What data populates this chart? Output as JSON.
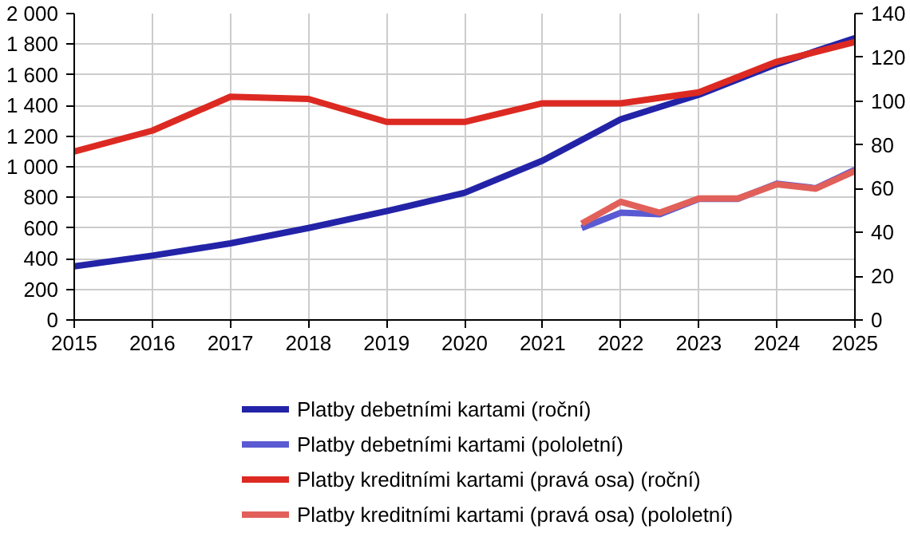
{
  "chart_data": {
    "type": "line",
    "xlim": [
      2015,
      2025
    ],
    "xticks": [
      2015,
      2016,
      2017,
      2018,
      2019,
      2020,
      2021,
      2022,
      2023,
      2024,
      2025
    ],
    "ylim": [
      0,
      2000
    ],
    "yticks": [
      {
        "value": 0,
        "label": "0"
      },
      {
        "value": 200,
        "label": "200"
      },
      {
        "value": 400,
        "label": "400"
      },
      {
        "value": 600,
        "label": "600"
      },
      {
        "value": 800,
        "label": "800"
      },
      {
        "value": 1000,
        "label": "1 000"
      },
      {
        "value": 1200,
        "label": "1 200"
      },
      {
        "value": 1400,
        "label": "1 400"
      },
      {
        "value": 1600,
        "label": "1 600"
      },
      {
        "value": 1800,
        "label": "1 800"
      },
      {
        "value": 2000,
        "label": "2 000"
      }
    ],
    "y2lim": [
      0,
      140
    ],
    "y2ticks": [
      0,
      20,
      40,
      60,
      80,
      100,
      120,
      140
    ],
    "grid": true,
    "legend": "bottom",
    "marker": "none",
    "line_style": "solid",
    "series": [
      {
        "name": "Platby debetními kartami (roční)",
        "color": "#2323a8",
        "x": [
          2015,
          2016,
          2017,
          2018,
          2019,
          2020,
          2021,
          2022,
          2023,
          2024,
          2025
        ],
        "values": [
          350,
          420,
          500,
          600,
          710,
          830,
          1040,
          1310,
          1470,
          1670,
          1840
        ]
      },
      {
        "name": "Platby debetními kartami (pololetní)",
        "color": "#5a5ad2",
        "x": [
          2021.5,
          2022,
          2022.5,
          2023,
          2023.5,
          2024,
          2024.5,
          2025
        ],
        "values": [
          600,
          700,
          690,
          790,
          790,
          890,
          860,
          980
        ]
      },
      {
        "name": "Platby kreditními kartami (pravá osa) (roční)",
        "color": "#dc2a22",
        "axis": "y2",
        "x": [
          2015,
          2016,
          2017,
          2018,
          2019,
          2020,
          2021,
          2022,
          2023,
          2024,
          2025
        ],
        "values": [
          77,
          86.5,
          102,
          101,
          90.5,
          90.5,
          99,
          99,
          104,
          118,
          127
        ]
      },
      {
        "name": "Platby kreditními kartami (pravá osa) (pololetní)",
        "color": "#e2605a",
        "axis": "y2",
        "x": [
          2021.5,
          2022,
          2022.5,
          2023,
          2023.5,
          2024,
          2024.5,
          2025
        ],
        "values": [
          44,
          54,
          49,
          55.5,
          55.5,
          62,
          60,
          68
        ]
      }
    ]
  }
}
